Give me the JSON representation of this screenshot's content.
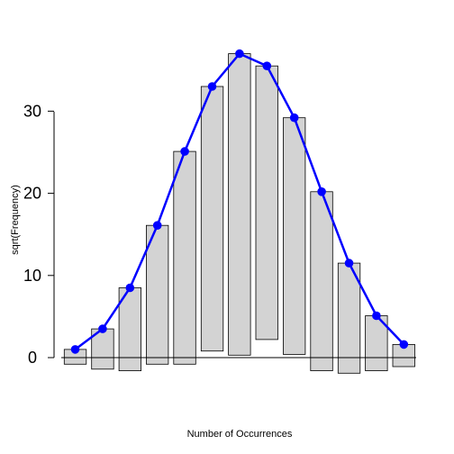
{
  "chart_data": {
    "type": "bar",
    "subtype": "hanging-rootogram",
    "xlabel": "Number of Occurrences",
    "ylabel": "sqrt(Frequency)",
    "ylim": [
      -2.5,
      40
    ],
    "yticks": [
      0,
      10,
      20,
      30
    ],
    "grid": false,
    "legend": "none",
    "bars": [
      {
        "top": 1.0,
        "bottom": -0.8
      },
      {
        "top": 3.5,
        "bottom": -1.4
      },
      {
        "top": 8.5,
        "bottom": -1.6
      },
      {
        "top": 16.1,
        "bottom": -0.8
      },
      {
        "top": 25.1,
        "bottom": -0.8
      },
      {
        "top": 33.0,
        "bottom": 0.8
      },
      {
        "top": 37.0,
        "bottom": 0.3
      },
      {
        "top": 35.5,
        "bottom": 2.2
      },
      {
        "top": 29.2,
        "bottom": 0.4
      },
      {
        "top": 20.2,
        "bottom": -1.6
      },
      {
        "top": 11.5,
        "bottom": -1.9
      },
      {
        "top": 5.1,
        "bottom": -1.6
      },
      {
        "top": 1.6,
        "bottom": -1.1
      }
    ],
    "expected": [
      1.0,
      3.5,
      8.5,
      16.1,
      25.1,
      33.0,
      37.0,
      35.5,
      29.2,
      20.2,
      11.5,
      5.1,
      1.6
    ],
    "colors": {
      "bar_fill": "#d3d3d3",
      "bar_stroke": "#000000",
      "line": "#0000ff",
      "zero_line": "#000000"
    }
  }
}
